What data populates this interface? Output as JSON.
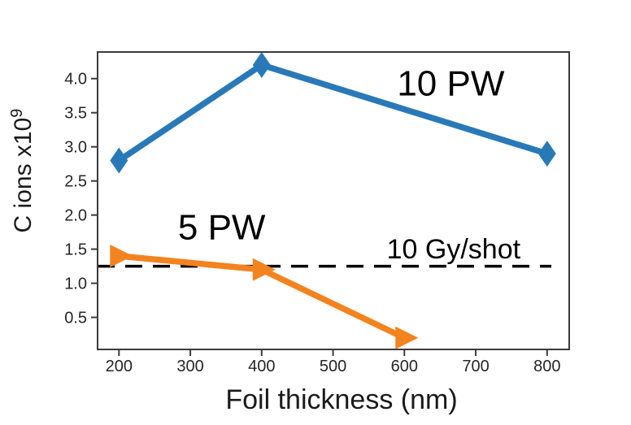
{
  "figure": {
    "background": "#ffffff"
  },
  "chart_data": {
    "type": "line",
    "title": "",
    "xlabel": "Foil thickness (nm)",
    "ylabel": "C ions x10^9",
    "ylabel_main": "C ions x10",
    "ylabel_exponent": "9",
    "xlim": [
      170,
      831
    ],
    "ylim": [
      0.03,
      4.39
    ],
    "xticks": [
      200,
      300,
      400,
      500,
      600,
      700,
      800
    ],
    "yticks": [
      0.5,
      1.0,
      1.5,
      2.0,
      2.5,
      3.0,
      3.5,
      4.0
    ],
    "grid": false,
    "legend_position": "none-inline-annotations",
    "colors": {
      "blue_series": "#2979b8",
      "orange_series": "#f2831f",
      "reference_line": "#000000",
      "spine": "#3b3b3b",
      "tick_text": "#262626",
      "label_text": "#1a1a1a"
    },
    "series": [
      {
        "name": "10 PW",
        "color": "#2979b8",
        "marker": "diamond",
        "x": [
          200,
          400,
          800
        ],
        "y": [
          2.8,
          4.2,
          2.9
        ]
      },
      {
        "name": "5 PW",
        "color": "#f2831f",
        "marker": "triangle-right",
        "x": [
          200,
          400,
          600
        ],
        "y": [
          1.4,
          1.2,
          0.2
        ]
      }
    ],
    "reference_line": {
      "label": "10 Gy/shot",
      "y": 1.25,
      "style": "dashed",
      "color": "#000000",
      "x_start": 170,
      "x_end": 806
    },
    "annotations": [
      {
        "text": "10 PW",
        "x": 665,
        "y": 3.93,
        "font_px": 44,
        "color": "#000000"
      },
      {
        "text": "5 PW",
        "x": 344,
        "y": 1.82,
        "font_px": 44,
        "color": "#000000"
      },
      {
        "text": "10 Gy/shot",
        "x": 669,
        "y": 1.5,
        "font_px": 34,
        "color": "#000000"
      }
    ]
  }
}
